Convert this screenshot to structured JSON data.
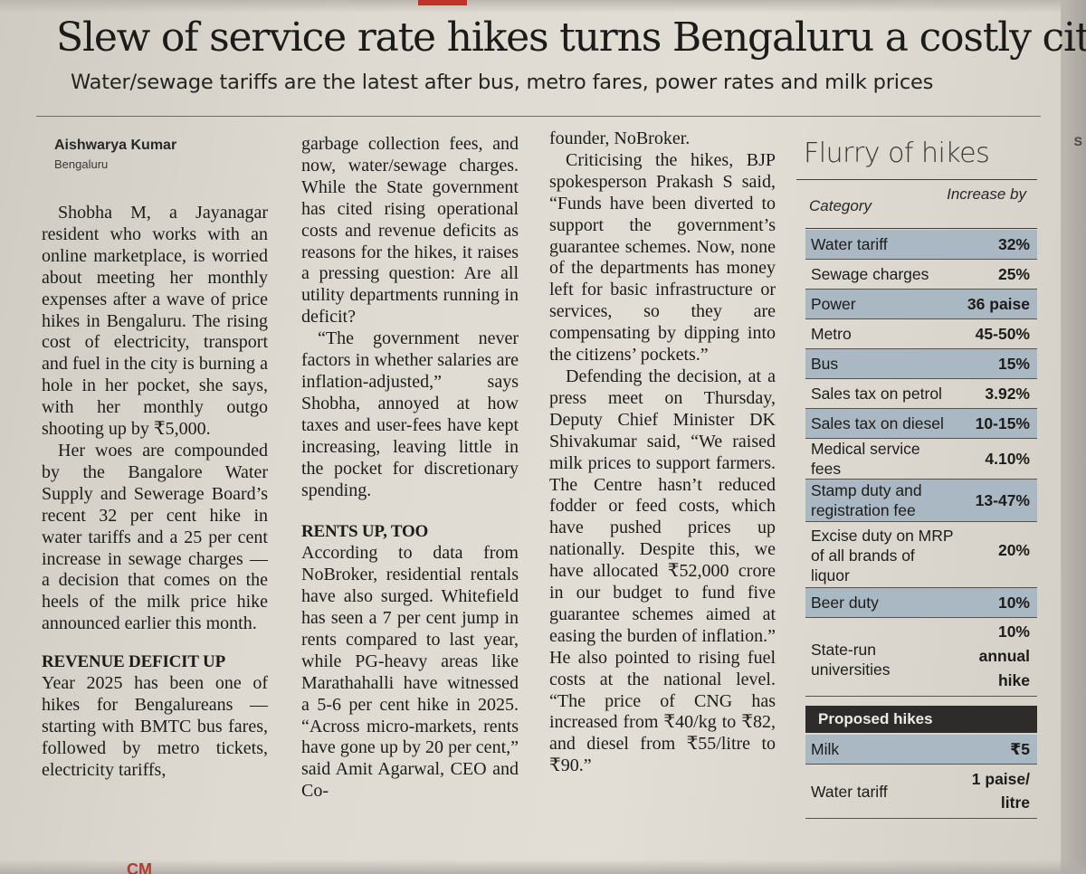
{
  "headline": "Slew of service rate hikes turns Bengaluru a costly city",
  "subhead": "Water/sewage tariffs are the latest after bus, metro fares, power rates and milk prices",
  "byline": {
    "name": "Aishwarya Kumar",
    "city": "Bengaluru"
  },
  "col1": {
    "p1": "Shobha M, a Jayanagar resident who works with an online marketplace, is worried about meeting her monthly expenses after a wave of price hikes in Bengaluru. The rising cost of electricity, transport and fuel in the city is burning a hole in her pocket, she says, with her monthly outgo shooting up by ₹5,000.",
    "p2": "Her woes are compounded by the Bangalore Water Supply and Sewerage Board’s recent 32 per cent hike in water tariffs and a 25 per cent increase in sewage charges — a decision that comes on the heels of the milk price hike announced earlier this month.",
    "subhead": "REVENUE DEFICIT UP",
    "p3": "Year 2025 has been one of hikes for Bengalureans — starting with BMTC bus fares, followed by metro tickets, electricity tariffs,"
  },
  "col2": {
    "p1": "garbage collection fees, and now, water/sewage charges. While the State government has cited rising operational costs and revenue deficits as reasons for the hikes, it raises a pressing question: Are all utility departments running in deficit?",
    "p2": "“The government never factors in whether salaries are inflation-adjusted,” says Shobha, annoyed at how taxes and user-fees have kept increasing, leaving little in the pocket for discretionary spending.",
    "subhead": "RENTS UP, TOO",
    "p3": "According to data from NoBroker, residential rentals have also surged. Whitefield has seen a 7 per cent jump in rents compared to last year, while PG-heavy areas like Marathahalli have witnessed a 5-6 per cent hike in 2025. “Across micro-markets, rents have gone up by 20 per cent,” said Amit Agarwal, CEO and Co-"
  },
  "col3": {
    "p1": "founder, NoBroker.",
    "p2": "Criticising the hikes, BJP spokesperson Prakash S said, “Funds have been diverted to support the government’s guarantee schemes. Now, none of the departments has money left for basic infrastructure or services, so they are compensating by dipping into the citizens’ pockets.”",
    "p3": "Defending the decision, at a press meet on Thursday, Deputy Chief Minister DK Shivakumar said, “We raised milk prices to support farmers. The Centre hasn’t reduced fodder or feed costs, which have pushed prices up nationally. Despite this, we have allocated ₹52,000 crore in our budget to fund five guarantee schemes aimed at easing the burden of inflation.” He also pointed to rising fuel costs at the national level. “The price of CNG has increased from ₹40/kg to ₹82, and diesel from ₹55/litre to ₹90.”"
  },
  "table": {
    "title": "Flurry of hikes",
    "col_category": "Category",
    "col_increase": "Increase by",
    "rows": [
      {
        "category": "Water tariff",
        "value": "32%"
      },
      {
        "category": "Sewage charges",
        "value": "25%"
      },
      {
        "category": "Power",
        "value": "36 paise"
      },
      {
        "category": "Metro",
        "value": "45-50%"
      },
      {
        "category": "Bus",
        "value": "15%"
      },
      {
        "category": "Sales tax on petrol",
        "value": "3.92%"
      },
      {
        "category": "Sales tax on diesel",
        "value": "10-15%"
      },
      {
        "category": "Medical service fees",
        "value": "4.10%"
      },
      {
        "category": "Stamp duty and registration fee",
        "value": "13-47%"
      },
      {
        "category": "Excise duty on MRP of all brands of liquor",
        "value": "20%"
      },
      {
        "category": "Beer duty",
        "value": "10%"
      },
      {
        "category": "State-run universities",
        "value": "10% annual hike"
      }
    ],
    "proposed_title": "Proposed hikes",
    "proposed": [
      {
        "category": "Milk",
        "value": "₹5"
      },
      {
        "category": "Water tariff",
        "value": "1 paise/ litre"
      }
    ]
  },
  "footer_mark": "CM"
}
